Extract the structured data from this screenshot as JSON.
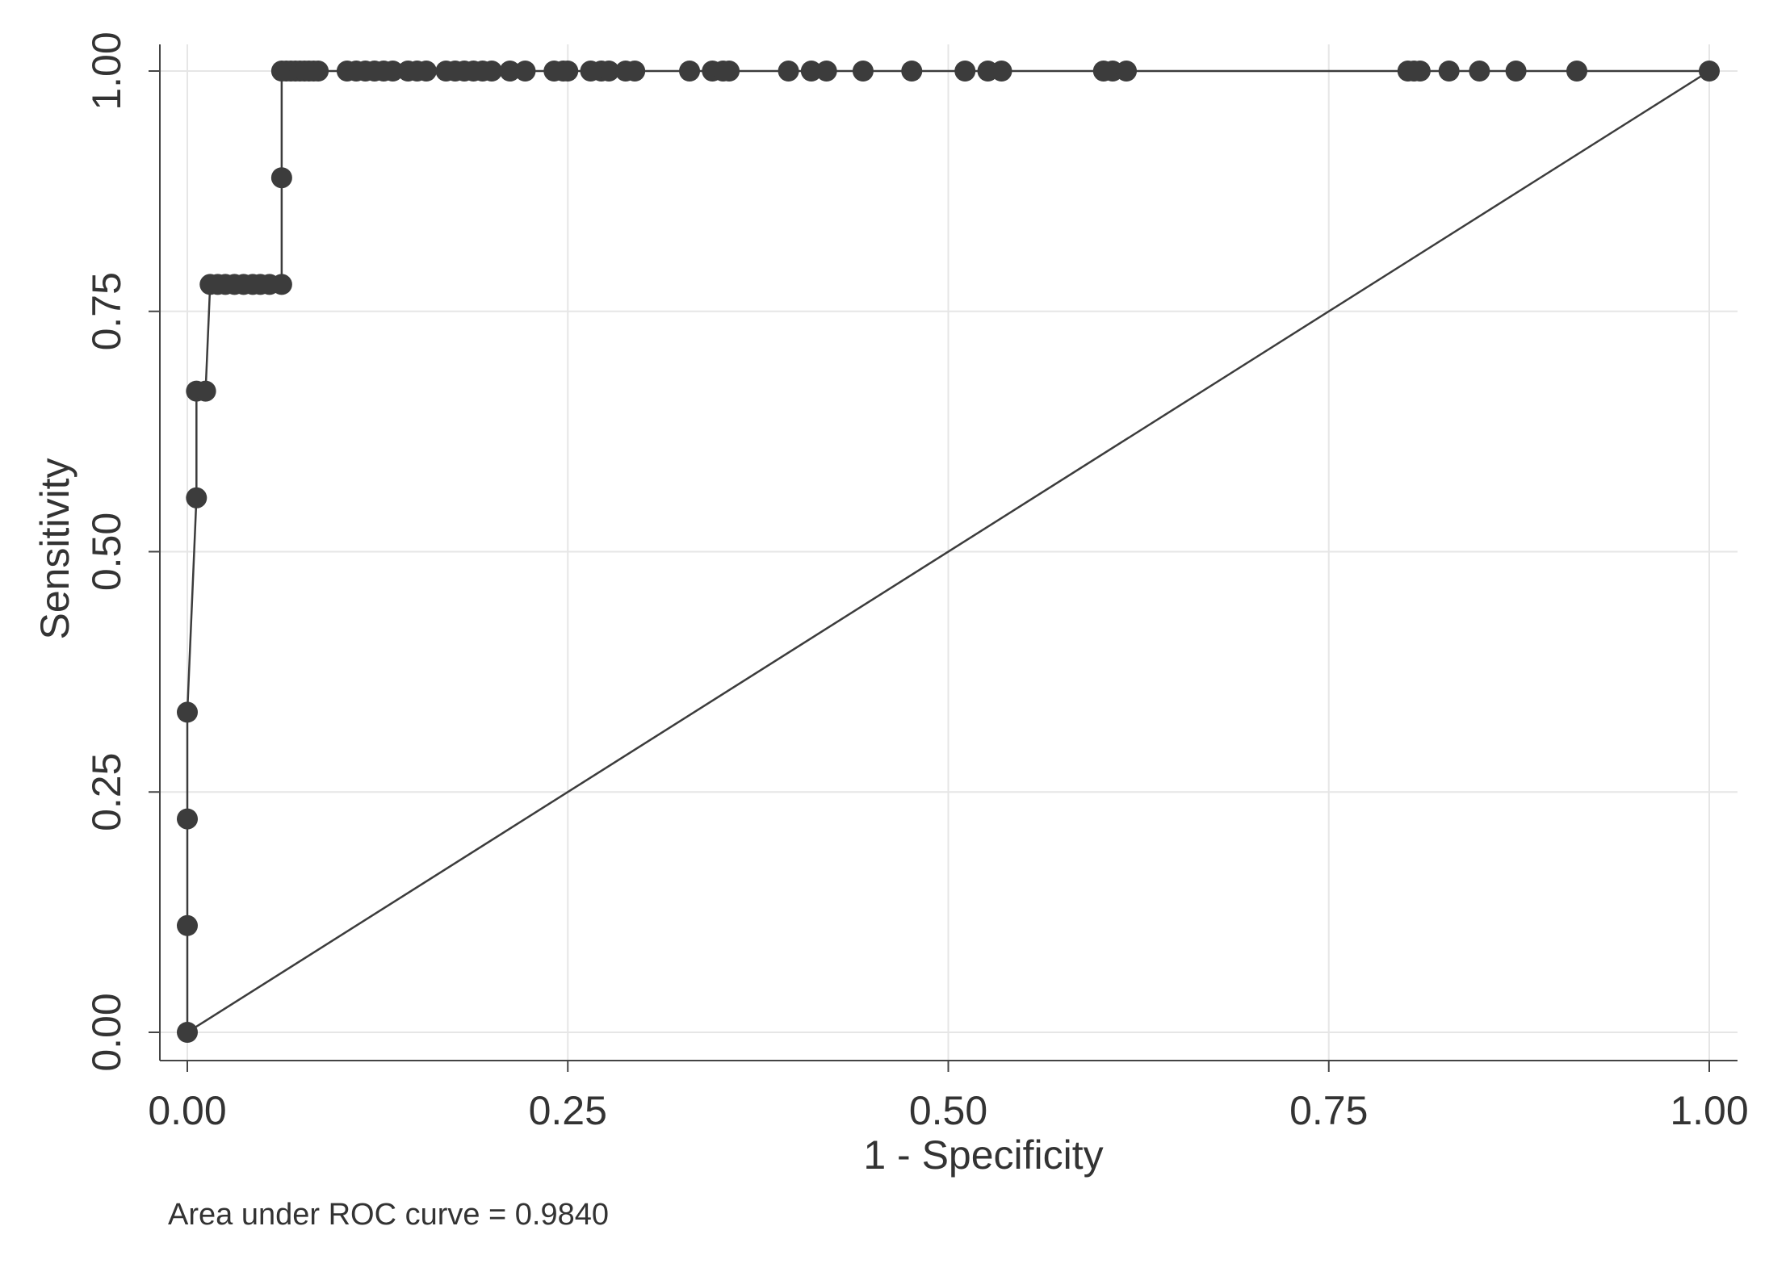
{
  "chart_data": {
    "type": "line",
    "x_label": "1 - Specificity",
    "y_label": "Sensitivity",
    "note": "Area under ROC curve = 0.9840",
    "color": "#3c3c3c",
    "x": [
      0,
      0,
      0,
      0,
      0.006,
      0.006,
      0.012,
      0.015,
      0.02,
      0.025,
      0.031,
      0.037,
      0.043,
      0.048,
      0.054,
      0.062,
      0.062,
      0.062,
      0.065,
      0.068,
      0.071,
      0.074,
      0.077,
      0.08,
      0.083,
      0.086,
      0.105,
      0.111,
      0.117,
      0.123,
      0.129,
      0.135,
      0.145,
      0.151,
      0.157,
      0.17,
      0.176,
      0.182,
      0.188,
      0.194,
      0.2,
      0.212,
      0.222,
      0.241,
      0.247,
      0.25,
      0.265,
      0.272,
      0.277,
      0.288,
      0.294,
      0.33,
      0.345,
      0.352,
      0.356,
      0.395,
      0.41,
      0.42,
      0.444,
      0.476,
      0.511,
      0.526,
      0.535,
      0.602,
      0.608,
      0.617,
      0.802,
      0.806,
      0.81,
      0.829,
      0.849,
      0.873,
      0.913,
      1
    ],
    "values": [
      0,
      0.111,
      0.222,
      0.333,
      0.556,
      0.667,
      0.667,
      0.778,
      0.778,
      0.778,
      0.778,
      0.778,
      0.778,
      0.778,
      0.778,
      0.778,
      0.889,
      1,
      1,
      1,
      1,
      1,
      1,
      1,
      1,
      1,
      1,
      1,
      1,
      1,
      1,
      1,
      1,
      1,
      1,
      1,
      1,
      1,
      1,
      1,
      1,
      1,
      1,
      1,
      1,
      1,
      1,
      1,
      1,
      1,
      1,
      1,
      1,
      1,
      1,
      1,
      1,
      1,
      1,
      1,
      1,
      1,
      1,
      1,
      1,
      1,
      1,
      1,
      1,
      1,
      1,
      1,
      1,
      1
    ],
    "reference": {
      "x": [
        0,
        1
      ],
      "values": [
        0,
        1
      ]
    },
    "xlim": [
      0,
      1
    ],
    "ylim": [
      0,
      1
    ],
    "xticks": [
      {
        "value": 0,
        "label": "0.00"
      },
      {
        "value": 0.25,
        "label": "0.25"
      },
      {
        "value": 0.5,
        "label": "0.50"
      },
      {
        "value": 0.75,
        "label": "0.75"
      },
      {
        "value": 1,
        "label": "1.00"
      }
    ],
    "yticks": [
      {
        "value": 0,
        "label": "0.00"
      },
      {
        "value": 0.25,
        "label": "0.25"
      },
      {
        "value": 0.5,
        "label": "0.50"
      },
      {
        "value": 0.75,
        "label": "0.75"
      },
      {
        "value": 1,
        "label": "1.00"
      }
    ],
    "grid": true
  }
}
